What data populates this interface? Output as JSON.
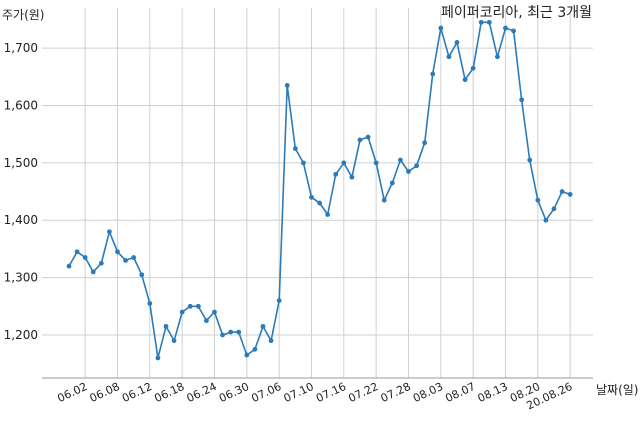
{
  "chart_data": {
    "type": "line",
    "title": "페이퍼코리아, 최근 3개월",
    "xlabel": "날짜(일)",
    "ylabel": "주가(원)",
    "ylim": [
      1125,
      1770
    ],
    "yticks": [
      1200,
      1300,
      1400,
      1500,
      1600,
      1700
    ],
    "ytick_labels": [
      "1,200",
      "1,300",
      "1,400",
      "1,500",
      "1,600",
      "1,700"
    ],
    "xtick_labels": [
      "06.02",
      "06.08",
      "06.12",
      "06.18",
      "06.24",
      "06.30",
      "07.06",
      "07.10",
      "07.16",
      "07.22",
      "07.28",
      "08.03",
      "08.07",
      "08.13",
      "08.20",
      "20.08.26"
    ],
    "xtick_index": [
      2,
      6,
      10,
      14,
      18,
      22,
      26,
      30,
      34,
      38,
      42,
      46,
      50,
      54,
      58,
      62
    ],
    "grid": true,
    "legend": "none",
    "colors": {
      "line": "#2b7bba",
      "grid": "#d0d0d0",
      "text": "#222222"
    },
    "series": [
      {
        "values": [
          1320,
          1345,
          1335,
          1310,
          1325,
          1380,
          1345,
          1330,
          1335,
          1305,
          1255,
          1160,
          1215,
          1190,
          1240,
          1250,
          1250,
          1225,
          1240,
          1200,
          1205,
          1205,
          1165,
          1175,
          1215,
          1190,
          1260,
          1635,
          1525,
          1500,
          1440,
          1430,
          1410,
          1480,
          1500,
          1475,
          1540,
          1545,
          1500,
          1435,
          1465,
          1505,
          1485,
          1495,
          1535,
          1655,
          1735,
          1685,
          1710,
          1645,
          1665,
          1745,
          1745,
          1685,
          1735,
          1730,
          1610,
          1505,
          1435,
          1400,
          1420,
          1450,
          1445
        ]
      }
    ]
  }
}
